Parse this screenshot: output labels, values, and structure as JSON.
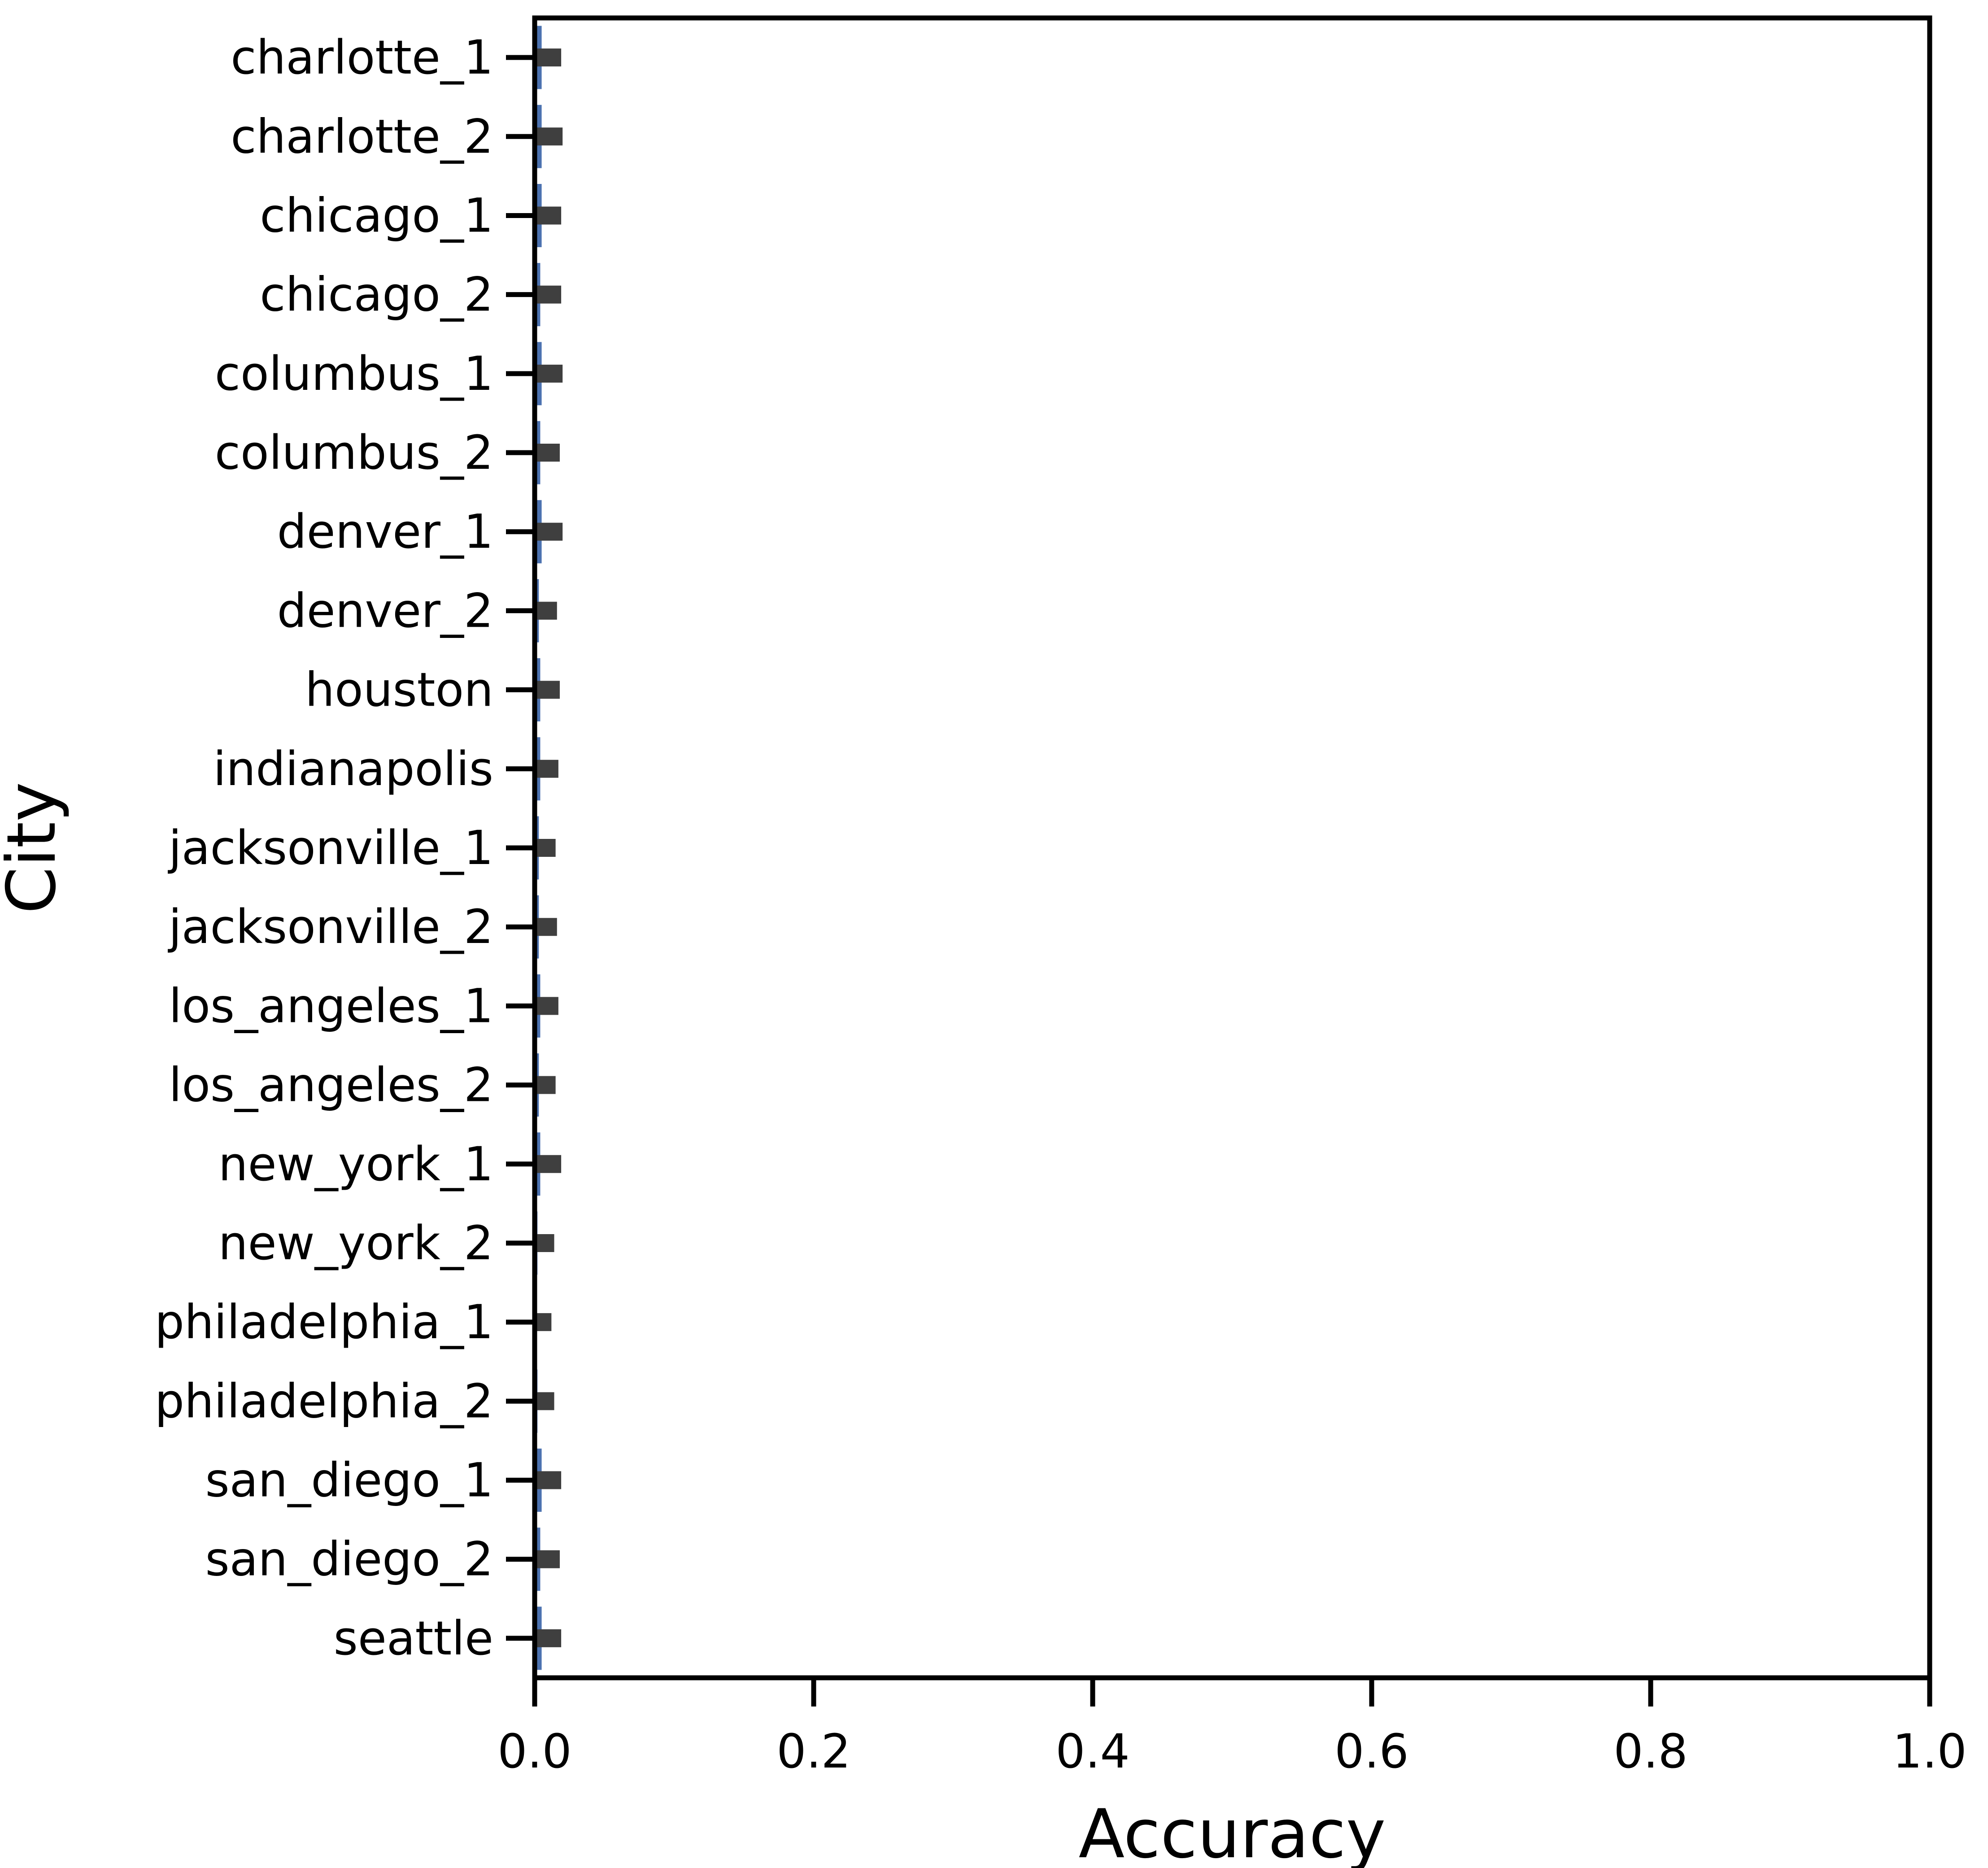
{
  "chart_data": {
    "type": "bar",
    "orientation": "horizontal",
    "title": "",
    "xlabel": "Accuracy",
    "ylabel": "City",
    "xlim": [
      0.0,
      1.0
    ],
    "xticks": [
      "0.0",
      "0.2",
      "0.4",
      "0.6",
      "0.8",
      "1.0"
    ],
    "xtick_values": [
      0.0,
      0.2,
      0.4,
      0.6,
      0.8,
      1.0
    ],
    "grid": false,
    "legend": "none",
    "bar_color": "#4c72b0",
    "error_bar_color": "#3f3f3f",
    "categories": [
      "charlotte_1",
      "charlotte_2",
      "chicago_1",
      "chicago_2",
      "columbus_1",
      "columbus_2",
      "denver_1",
      "denver_2",
      "houston",
      "indianapolis",
      "jacksonville_1",
      "jacksonville_2",
      "los_angeles_1",
      "los_angeles_2",
      "new_york_1",
      "new_york_2",
      "philadelphia_1",
      "philadelphia_2",
      "san_diego_1",
      "san_diego_2",
      "seattle"
    ],
    "values": [
      0.005,
      0.005,
      0.005,
      0.004,
      0.005,
      0.004,
      0.005,
      0.003,
      0.004,
      0.004,
      0.003,
      0.003,
      0.004,
      0.003,
      0.004,
      0.002,
      0.001,
      0.002,
      0.005,
      0.004,
      0.005
    ],
    "error_low": [
      0.0,
      0.0,
      0.0,
      0.0,
      0.0,
      0.0,
      0.0,
      0.0,
      0.0,
      0.0,
      0.0,
      0.0,
      0.0,
      0.0,
      0.0,
      0.0,
      0.0,
      0.0,
      0.0,
      0.0,
      0.0
    ],
    "error_high": [
      0.019,
      0.02,
      0.019,
      0.019,
      0.02,
      0.018,
      0.02,
      0.016,
      0.018,
      0.017,
      0.015,
      0.016,
      0.017,
      0.015,
      0.019,
      0.014,
      0.012,
      0.014,
      0.019,
      0.018,
      0.019
    ]
  }
}
